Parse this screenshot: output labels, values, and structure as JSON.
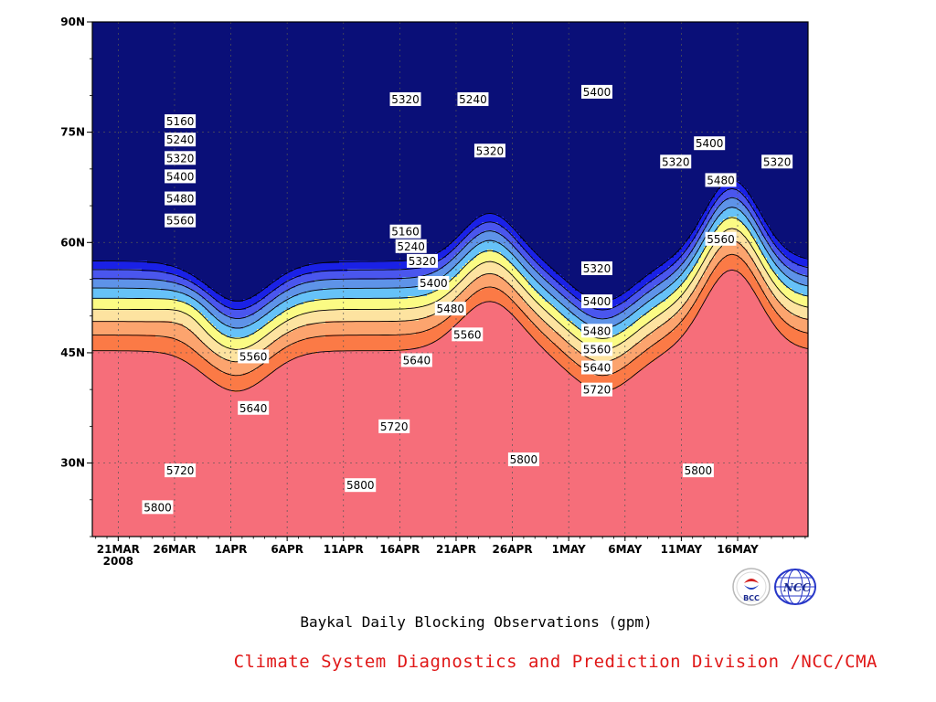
{
  "chart_data": {
    "type": "heatmap",
    "title": "Baykal Daily Blocking Observations (gpm)",
    "x_ticks": [
      "21MAR",
      "26MAR",
      "1APR",
      "6APR",
      "11APR",
      "16APR",
      "21APR",
      "26APR",
      "1MAY",
      "6MAY",
      "11MAY",
      "16MAY"
    ],
    "x_year_label": "2008",
    "y_ticks": [
      "30N",
      "45N",
      "60N",
      "75N",
      "90N"
    ],
    "ylim": [
      20,
      90
    ],
    "contour_levels": [
      5160,
      5240,
      5320,
      5400,
      5480,
      5560,
      5640,
      5720,
      5800
    ],
    "level_colors": [
      "#0a0f78",
      "#1a21e6",
      "#4a56ee",
      "#5e93e8",
      "#66c2f8",
      "#fbfb84",
      "#fde3a0",
      "#fca46e",
      "#fb7a46",
      "#f66e7a"
    ],
    "contour_labels": [
      {
        "text": "5160",
        "day": 5.5,
        "lat": 76.5
      },
      {
        "text": "5240",
        "day": 5.5,
        "lat": 74.0
      },
      {
        "text": "5320",
        "day": 5.5,
        "lat": 71.5
      },
      {
        "text": "5400",
        "day": 5.5,
        "lat": 69.0
      },
      {
        "text": "5480",
        "day": 5.5,
        "lat": 66.0
      },
      {
        "text": "5560",
        "day": 5.5,
        "lat": 63.0
      },
      {
        "text": "5560",
        "day": 12.0,
        "lat": 44.5
      },
      {
        "text": "5640",
        "day": 12.0,
        "lat": 37.5
      },
      {
        "text": "5720",
        "day": 5.5,
        "lat": 29.0
      },
      {
        "text": "5800",
        "day": 3.5,
        "lat": 24.0
      },
      {
        "text": "5320",
        "day": 25.5,
        "lat": 79.5
      },
      {
        "text": "5240",
        "day": 31.5,
        "lat": 79.5
      },
      {
        "text": "5160",
        "day": 25.5,
        "lat": 61.5
      },
      {
        "text": "5240",
        "day": 26.0,
        "lat": 59.5
      },
      {
        "text": "5320",
        "day": 27.0,
        "lat": 57.5
      },
      {
        "text": "5400",
        "day": 28.0,
        "lat": 54.5
      },
      {
        "text": "5480",
        "day": 29.5,
        "lat": 51.0
      },
      {
        "text": "5560",
        "day": 31.0,
        "lat": 47.5
      },
      {
        "text": "5640",
        "day": 26.5,
        "lat": 44.0
      },
      {
        "text": "5720",
        "day": 24.5,
        "lat": 35.0
      },
      {
        "text": "5800",
        "day": 21.5,
        "lat": 27.0
      },
      {
        "text": "5320",
        "day": 33.0,
        "lat": 72.5
      },
      {
        "text": "5800",
        "day": 36.0,
        "lat": 30.5
      },
      {
        "text": "5400",
        "day": 42.5,
        "lat": 80.5
      },
      {
        "text": "5320",
        "day": 42.5,
        "lat": 56.5
      },
      {
        "text": "5400",
        "day": 42.5,
        "lat": 52.0
      },
      {
        "text": "5480",
        "day": 42.5,
        "lat": 48.0
      },
      {
        "text": "5560",
        "day": 42.5,
        "lat": 45.5
      },
      {
        "text": "5640",
        "day": 42.5,
        "lat": 43.0
      },
      {
        "text": "5720",
        "day": 42.5,
        "lat": 40.0
      },
      {
        "text": "5320",
        "day": 49.5,
        "lat": 71.0
      },
      {
        "text": "5400",
        "day": 52.5,
        "lat": 73.5
      },
      {
        "text": "5480",
        "day": 53.5,
        "lat": 68.5
      },
      {
        "text": "5560",
        "day": 53.5,
        "lat": 60.5
      },
      {
        "text": "5800",
        "day": 51.5,
        "lat": 29.0
      },
      {
        "text": "5320",
        "day": 58.5,
        "lat": 71.0
      }
    ]
  },
  "logos": {
    "bcc": {
      "text": "BCC"
    },
    "ncc": {
      "text": "NCC"
    }
  },
  "footer": "Climate System Diagnostics and Prediction Division /NCC/CMA"
}
